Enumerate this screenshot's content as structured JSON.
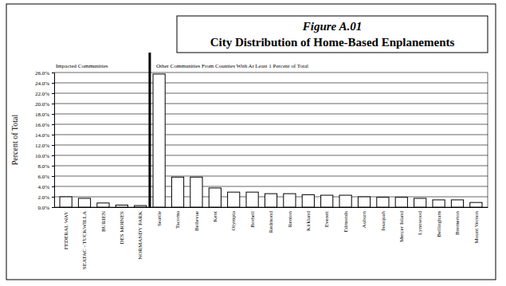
{
  "chart_data": {
    "type": "bar",
    "title": "Figure A.01",
    "subtitle": "City Distribution of Home-Based Enplanements",
    "y_label": "Percent of Total",
    "annotations": [
      "Impacted Communities",
      "Other Communities From Counties With At Least 1 Percent of Total"
    ],
    "categories": [
      "FEDERAL WAY",
      "SEATAC - TUCKWILLA",
      "BURIEN",
      "DES MOINES",
      "NORMANDY PARK",
      "Seattle",
      "Tacoma",
      "Bellevue",
      "Kent",
      "Olympia",
      "Bothell",
      "Redmond",
      "Renton",
      "Kirkland",
      "Everett",
      "Edmonds",
      "Auburn",
      "Issaquah",
      "Mercer Island",
      "Lynnwood",
      "Bellingham",
      "Bremerton",
      "Mount Vernon"
    ],
    "values": [
      2.0,
      1.7,
      0.8,
      0.4,
      0.3,
      25.7,
      5.8,
      5.8,
      3.7,
      2.9,
      2.9,
      2.6,
      2.6,
      2.4,
      2.3,
      2.3,
      2.0,
      1.9,
      1.9,
      1.7,
      1.4,
      1.4,
      0.9
    ],
    "color": "#ffffff",
    "ylim": [
      0,
      26
    ],
    "yticks": [
      {
        "value": 0,
        "label": "0.0%"
      },
      {
        "value": 2,
        "label": "2.0%"
      },
      {
        "value": 4,
        "label": "4.0%"
      },
      {
        "value": 6,
        "label": "6.0%"
      },
      {
        "value": 8,
        "label": "8.0%"
      },
      {
        "value": 10,
        "label": "10.0%"
      },
      {
        "value": 12,
        "label": "12.0%"
      },
      {
        "value": 14,
        "label": "14.0%"
      },
      {
        "value": 16,
        "label": "16.0%"
      },
      {
        "value": 18,
        "label": "18.0%"
      },
      {
        "value": 20,
        "label": "20.0%"
      },
      {
        "value": 22,
        "label": "22.0%"
      },
      {
        "value": 24,
        "label": "24.0%"
      },
      {
        "value": 26,
        "label": "26.0%"
      }
    ],
    "grid": true
  }
}
